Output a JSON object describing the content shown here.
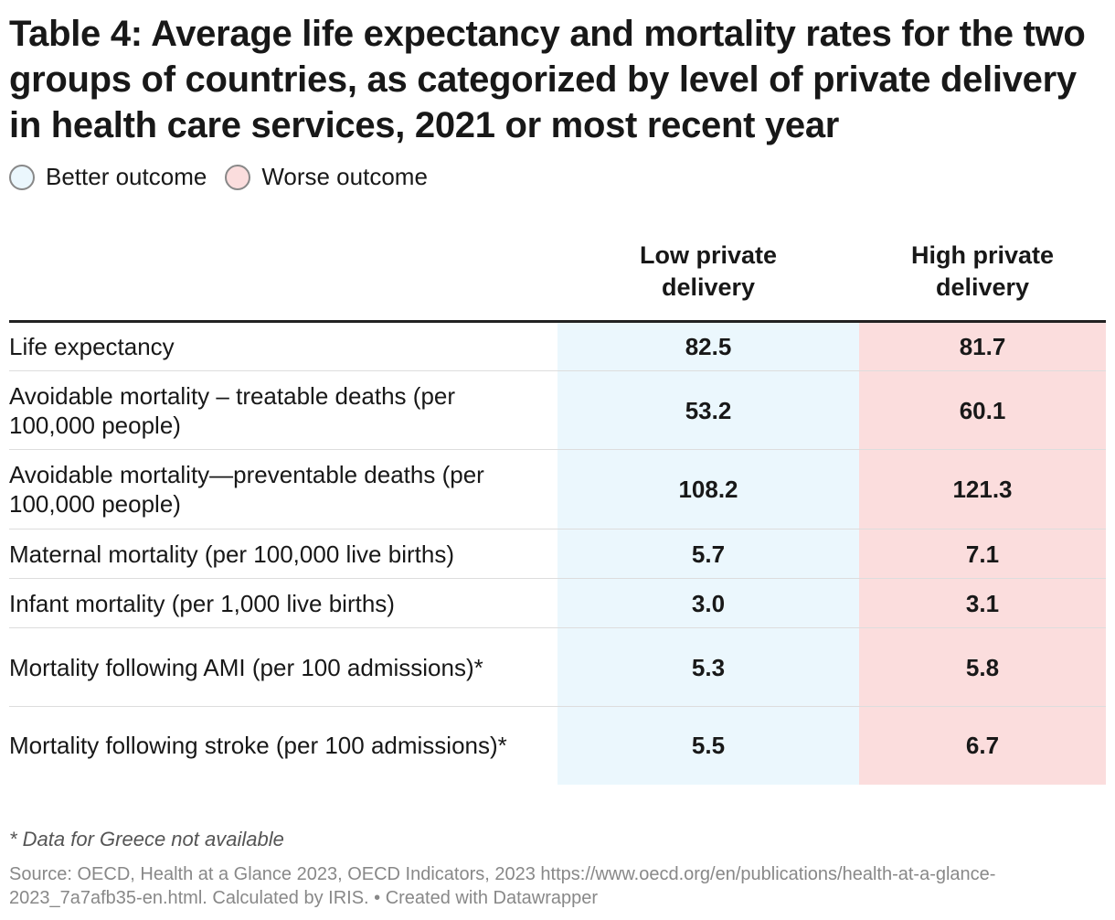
{
  "header": {
    "title": "Table 4: Average life expectancy and mortality rates for the two groups of countries, as categorized by level of private delivery in health care services, 2021 or most recent year"
  },
  "legend": [
    {
      "label": "Better outcome"
    },
    {
      "label": "Worse outcome"
    }
  ],
  "table": {
    "columns": [
      "Low private delivery",
      "High private delivery"
    ],
    "rows": [
      [
        "Life expectancy",
        "82.5",
        "81.7"
      ],
      [
        "Avoidable mortality – treatable deaths (per 100,000 people)",
        "53.2",
        "60.1"
      ],
      [
        "Avoidable mortality—preventable deaths (per 100,000 people)",
        "108.2",
        "121.3"
      ],
      [
        "Maternal mortality (per 100,000 live births)",
        "5.7",
        "7.1"
      ],
      [
        "Infant mortality (per 1,000 live births)",
        "3.0",
        "3.1"
      ],
      [
        "Mortality following AMI (per 100 admissions)*",
        "5.3",
        "5.8"
      ],
      [
        "Mortality following stroke (per 100 admissions)*",
        "5.5",
        "6.7"
      ]
    ]
  },
  "footer": {
    "note": "* Data for Greece not available",
    "source": "Source: OECD, Health at a Glance 2023, OECD Indicators, 2023 https://www.oecd.org/en/publications/health-at-a-glance-2023_7a7afb35-en.html. Calculated by IRIS. • Created with Datawrapper"
  }
}
